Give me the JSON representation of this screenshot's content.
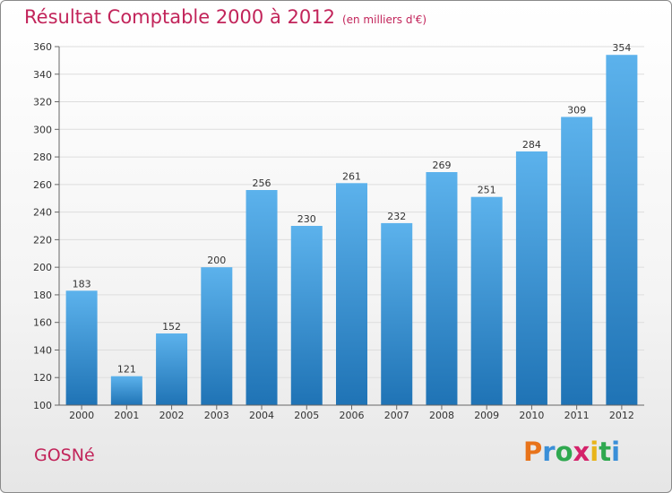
{
  "header": {
    "title": "Résultat Comptable 2000 à 2012",
    "subtitle": "(en milliers d'€)"
  },
  "footer": {
    "commune": "GOSNé",
    "brand": [
      "P",
      "r",
      "o",
      "x",
      "i",
      "t",
      "i"
    ],
    "brand_colors": [
      "#e8731a",
      "#3a8fd8",
      "#2fa84f",
      "#d4226a",
      "#e8b41a",
      "#2fa84f",
      "#3a8fd8"
    ]
  },
  "colors": {
    "bar_light": "#5cb2ec",
    "bar_dark": "#1f73b5",
    "grid": "#dddddd",
    "accent": "#c2245a"
  },
  "chart_data": {
    "type": "bar",
    "title": "Résultat Comptable 2000 à 2012",
    "subtitle": "(en milliers d'€)",
    "xlabel": "",
    "ylabel": "",
    "categories": [
      "2000",
      "2001",
      "2002",
      "2003",
      "2004",
      "2005",
      "2006",
      "2007",
      "2008",
      "2009",
      "2010",
      "2011",
      "2012"
    ],
    "values": [
      183,
      121,
      152,
      200,
      256,
      230,
      261,
      232,
      269,
      251,
      284,
      309,
      354
    ],
    "ylim": [
      100,
      360
    ],
    "yticks": [
      100,
      120,
      140,
      160,
      180,
      200,
      220,
      240,
      260,
      280,
      300,
      320,
      340,
      360
    ],
    "grid": true,
    "legend": "none"
  }
}
